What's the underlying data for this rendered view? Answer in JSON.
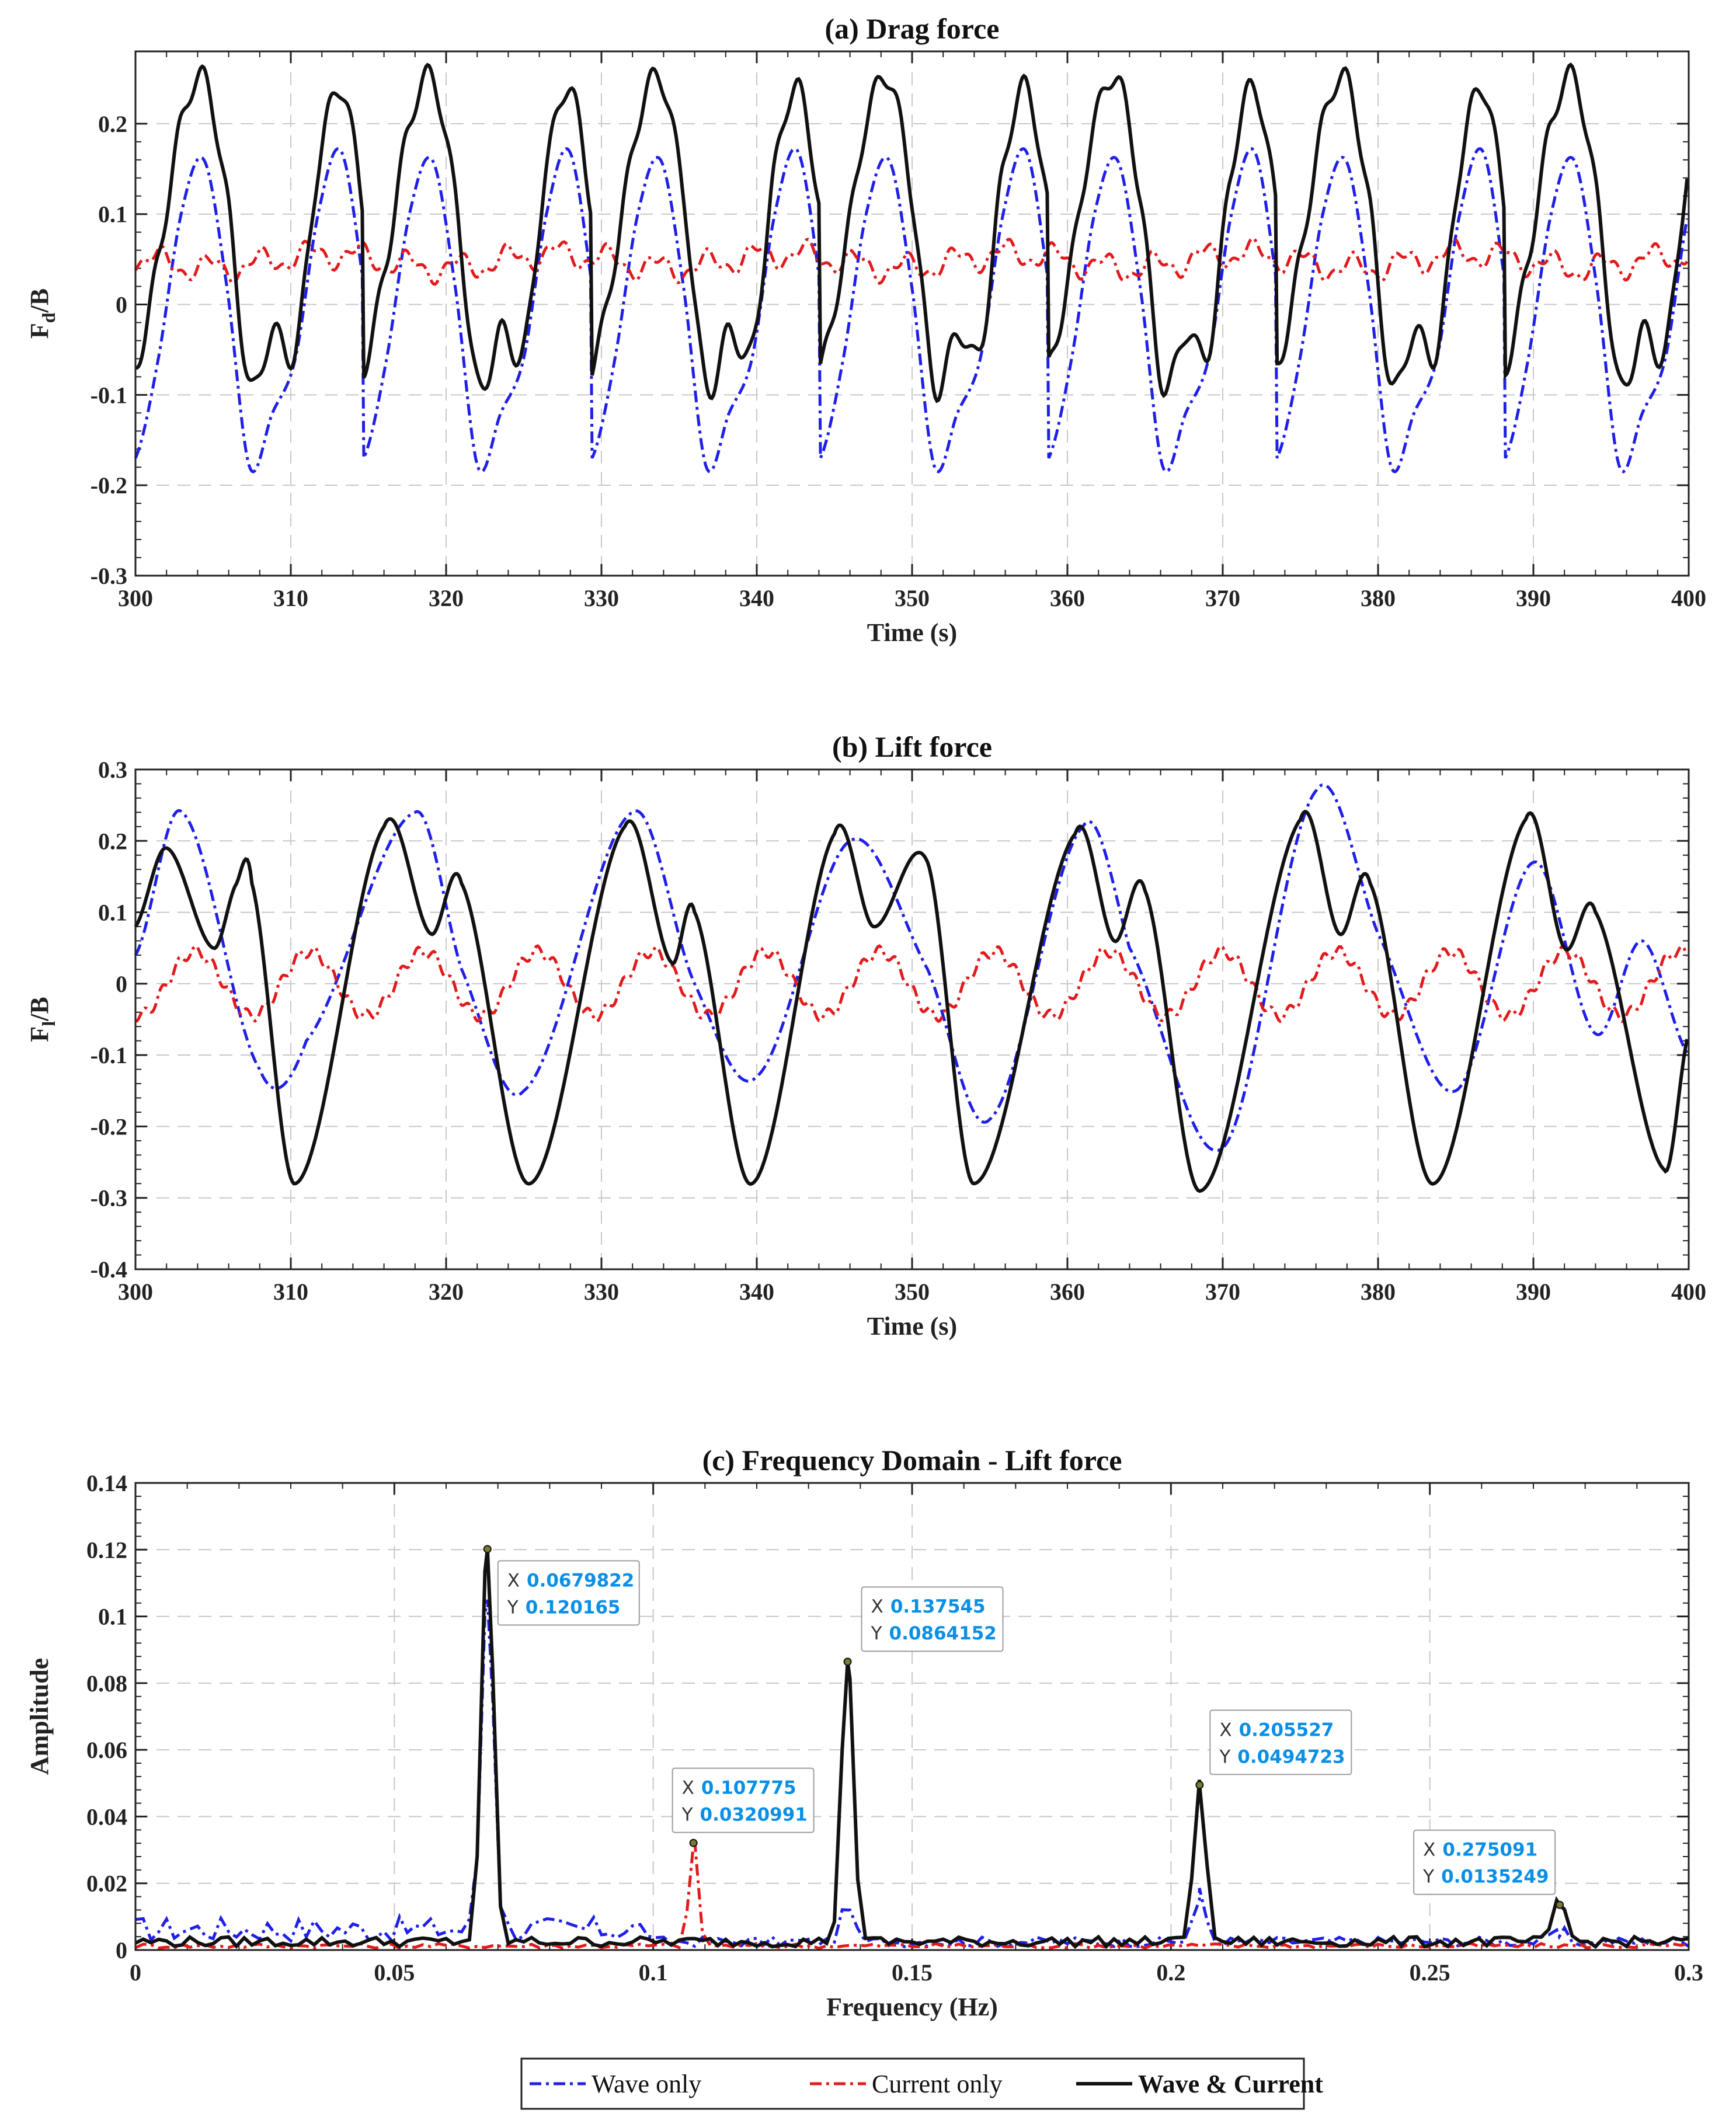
{
  "colors": {
    "wave": "#1f1fe8",
    "current": "#e31a1c",
    "combined": "#111111",
    "datatip_value": "#0a8fe6"
  },
  "legend": {
    "wave": "Wave only",
    "current": "Current only",
    "combined": "Wave & Current"
  },
  "chart_data": [
    {
      "id": "drag",
      "type": "line",
      "title": "(a) Drag force",
      "xlabel": "Time (s)",
      "ylabel_main": "F",
      "ylabel_sub": "d",
      "ylabel_tail": "/B",
      "xlim": [
        300,
        400
      ],
      "ylim": [
        -0.3,
        0.28
      ],
      "xticks": [
        300,
        310,
        320,
        330,
        340,
        350,
        360,
        370,
        380,
        390,
        400
      ],
      "xtick_labels": [
        "300",
        "310",
        "320",
        "330",
        "340",
        "350",
        "360",
        "370",
        "380",
        "390",
        "400"
      ],
      "yticks": [
        -0.3,
        -0.2,
        -0.1,
        0,
        0.1,
        0.2
      ],
      "ytick_labels": [
        "-0.3",
        "-0.2",
        "-0.1",
        "0",
        "0.1",
        "0.2"
      ],
      "period_s": 14.7,
      "series": [
        {
          "key": "wave",
          "name": "Wave only",
          "mean": 0,
          "amp_major": 0.18,
          "peak_cycle_time_s": 308,
          "anchor_time_s": 300,
          "anchors": [
            -0.17,
            -0.06,
            0.1,
            0.16,
            0.02,
            -0.18,
            -0.12,
            -0.06,
            0.1,
            0.17,
            0.02,
            -0.19
          ]
        },
        {
          "key": "current",
          "name": "Current only",
          "mean": 0.048,
          "ripple": 0.012,
          "ripple_period_s": 3.2
        },
        {
          "key": "combined",
          "name": "Wave & Current",
          "anchor_time_s": 300,
          "anchors": [
            -0.07,
            0.05,
            0.2,
            0.25,
            0.12,
            -0.09,
            -0.03,
            -0.05,
            0.15,
            0.24,
            0.1,
            -0.11
          ]
        }
      ]
    },
    {
      "id": "lift",
      "type": "line",
      "title": "(b) Lift force",
      "xlabel": "Time (s)",
      "ylabel_main": "F",
      "ylabel_sub": "l",
      "ylabel_tail": "/B",
      "xlim": [
        300,
        400
      ],
      "ylim": [
        -0.4,
        0.3
      ],
      "xticks": [
        300,
        310,
        320,
        330,
        340,
        350,
        360,
        370,
        380,
        390,
        400
      ],
      "xtick_labels": [
        "300",
        "310",
        "320",
        "330",
        "340",
        "350",
        "360",
        "370",
        "380",
        "390",
        "400"
      ],
      "yticks": [
        -0.4,
        -0.3,
        -0.2,
        -0.1,
        0,
        0.1,
        0.2,
        0.3
      ],
      "ytick_labels": [
        "-0.4",
        "-0.3",
        "-0.2",
        "-0.1",
        "0",
        "0.1",
        "0.2",
        "0.3"
      ],
      "period_s": 14.7,
      "series": [
        {
          "key": "wave",
          "name": "Wave only",
          "anchors_time_s": [
            300,
            303,
            308,
            311,
            318,
            321,
            325,
            332,
            336,
            340,
            346,
            351,
            355,
            361,
            364,
            370,
            376,
            380,
            385,
            390,
            394,
            397,
            400
          ],
          "anchors": [
            0.04,
            0.24,
            -0.12,
            -0.08,
            0.24,
            0.02,
            -0.15,
            0.24,
            0.0,
            -0.13,
            0.2,
            0.02,
            -0.19,
            0.22,
            0.05,
            -0.23,
            0.27,
            0.07,
            -0.15,
            0.17,
            -0.07,
            0.06,
            -0.1
          ]
        },
        {
          "key": "current",
          "name": "Current only",
          "mean": 0.0,
          "amp": 0.045,
          "ripple_period_s": 7.35
        },
        {
          "key": "combined",
          "name": "Wave & Current",
          "anchors_time_s": [
            300,
            302,
            305,
            306.5,
            307.5,
            310.3,
            316,
            319,
            321,
            325.4,
            331.5,
            334.5,
            336,
            339.7,
            345,
            347.5,
            351,
            354,
            360.5,
            363,
            365,
            368.6,
            375,
            377.5,
            379.5,
            383.6,
            389.5,
            392,
            394,
            398.4,
            400
          ],
          "anchors": [
            0.08,
            0.19,
            0.05,
            0.14,
            0.14,
            -0.28,
            0.22,
            0.07,
            0.14,
            -0.28,
            0.22,
            0.03,
            0.1,
            -0.28,
            0.21,
            0.08,
            0.17,
            -0.28,
            0.21,
            0.06,
            0.13,
            -0.29,
            0.23,
            0.07,
            0.14,
            -0.28,
            0.23,
            0.05,
            0.1,
            -0.26,
            -0.07
          ]
        }
      ]
    },
    {
      "id": "freq",
      "type": "line",
      "title": "(c) Frequency Domain - Lift force",
      "xlabel": "Frequency (Hz)",
      "ylabel": "Amplitude",
      "xlim": [
        0,
        0.3
      ],
      "ylim": [
        0,
        0.14
      ],
      "xticks": [
        0,
        0.05,
        0.1,
        0.15,
        0.2,
        0.25,
        0.3
      ],
      "xtick_labels": [
        "0",
        "0.05",
        "0.1",
        "0.15",
        "0.2",
        "0.25",
        "0.3"
      ],
      "yticks": [
        0,
        0.02,
        0.04,
        0.06,
        0.08,
        0.1,
        0.12,
        0.14
      ],
      "ytick_labels": [
        "0",
        "0.02",
        "0.04",
        "0.06",
        "0.08",
        "0.1",
        "0.12",
        "0.14"
      ],
      "series": [
        {
          "key": "wave",
          "name": "Wave only",
          "peaks": [
            [
              0.068,
              0.105
            ],
            [
              0.1375,
              0.012
            ],
            [
              0.2055,
              0.015
            ],
            [
              0.275,
              0.004
            ]
          ],
          "noise_level": 0.01
        },
        {
          "key": "current",
          "name": "Current only",
          "peaks": [
            [
              0.1078,
              0.032
            ]
          ],
          "noise_level": 0.002
        },
        {
          "key": "combined",
          "name": "Wave & Current",
          "peaks": [
            [
              0.0679822,
              0.120165
            ],
            [
              0.137545,
              0.0864152
            ],
            [
              0.205527,
              0.0494723
            ],
            [
              0.275091,
              0.0135249
            ]
          ],
          "noise_level": 0.004
        }
      ],
      "datatips": [
        {
          "x_label": "X",
          "x_value": "0.0679822",
          "y_label": "Y",
          "y_value": "0.120165",
          "x": 0.0679822,
          "y": 0.120165
        },
        {
          "x_label": "X",
          "x_value": "0.107775",
          "y_label": "Y",
          "y_value": "0.0320991",
          "x": 0.107775,
          "y": 0.0320991
        },
        {
          "x_label": "X",
          "x_value": "0.137545",
          "y_label": "Y",
          "y_value": "0.0864152",
          "x": 0.137545,
          "y": 0.0864152
        },
        {
          "x_label": "X",
          "x_value": "0.205527",
          "y_label": "Y",
          "y_value": "0.0494723",
          "x": 0.205527,
          "y": 0.0494723
        },
        {
          "x_label": "X",
          "x_value": "0.275091",
          "y_label": "Y",
          "y_value": "0.0135249",
          "x": 0.275091,
          "y": 0.0135249
        }
      ]
    }
  ]
}
